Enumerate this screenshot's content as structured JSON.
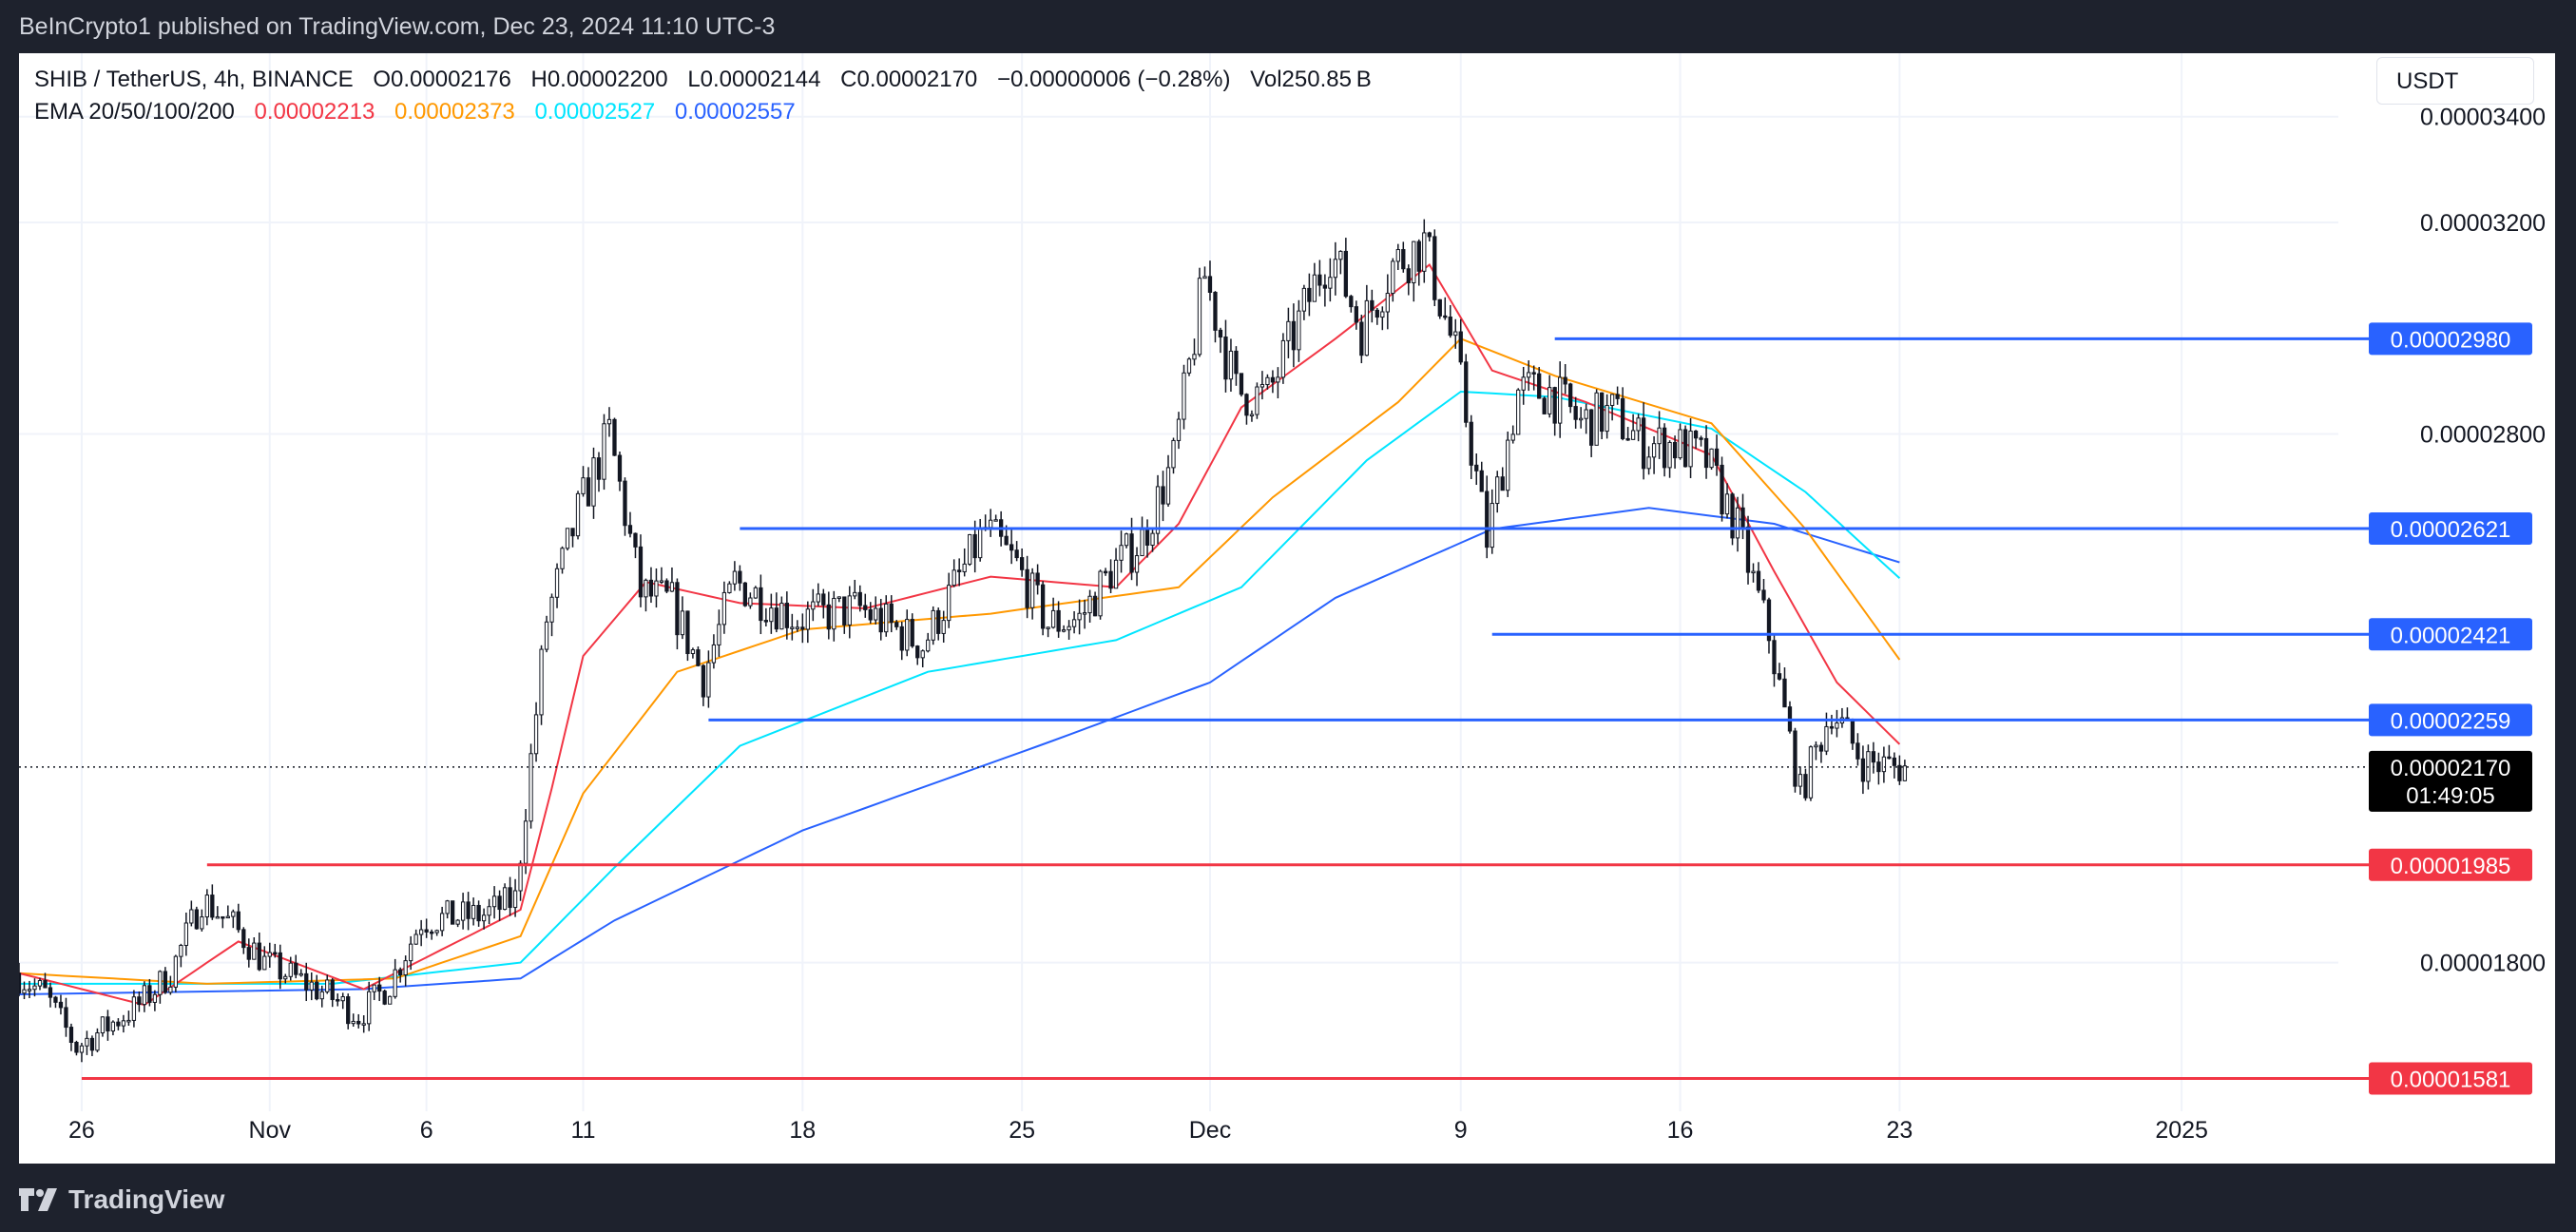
{
  "header": {
    "publisher_line": "BeInCrypto1 published on TradingView.com, Dec 23, 2024 11:10 UTC-3"
  },
  "legend": {
    "symbol": "SHIB / TetherUS, 4h, BINANCE",
    "open": "O0.00002176",
    "high": "H0.00002200",
    "low": "L0.00002144",
    "close": "C0.00002170",
    "change": "−0.00000006 (−0.28%)",
    "volume": "Vol250.85 B",
    "ema_label": "EMA 20/50/100/200",
    "ema20": "0.00002213",
    "ema50": "0.00002373",
    "ema100": "0.00002527",
    "ema200": "0.00002557"
  },
  "currency_button": "USDT",
  "footer": {
    "brand": "TradingView"
  },
  "colors": {
    "ema20": "#f23645",
    "ema50": "#ff9800",
    "ema100": "#00e5ff",
    "ema200": "#2962ff",
    "resistance": "#2962ff",
    "support": "#f23645"
  },
  "chart_data": {
    "type": "candlestick",
    "y_axis_ticks": [
      {
        "label": "0.00003400",
        "value": 3.4e-05
      },
      {
        "label": "0.00003200",
        "value": 3.2e-05
      },
      {
        "label": "0.00002800",
        "value": 2.8e-05
      },
      {
        "label": "0.00001800",
        "value": 1.8e-05
      }
    ],
    "x_axis_ticks": [
      {
        "label": "26",
        "date": "2024-10-26"
      },
      {
        "label": "Nov",
        "date": "2024-11-01"
      },
      {
        "label": "6",
        "date": "2024-11-06"
      },
      {
        "label": "11",
        "date": "2024-11-11"
      },
      {
        "label": "18",
        "date": "2024-11-18"
      },
      {
        "label": "25",
        "date": "2024-11-25"
      },
      {
        "label": "Dec",
        "date": "2024-12-01"
      },
      {
        "label": "9",
        "date": "2024-12-09"
      },
      {
        "label": "16",
        "date": "2024-12-16"
      },
      {
        "label": "23",
        "date": "2024-12-23"
      },
      {
        "label": "2025",
        "date": "2025-01-01"
      }
    ],
    "ylim": [
      1.42e-05,
      3.52e-05
    ],
    "xlim": [
      "2024-10-24",
      "2025-01-06"
    ],
    "last_price": {
      "label": "0.00002170",
      "value": 2.17e-05,
      "countdown": "01:49:05"
    },
    "levels": [
      {
        "label": "0.00002980",
        "value": 2.98e-05,
        "kind": "resistance",
        "from": "2024-12-12"
      },
      {
        "label": "0.00002621",
        "value": 2.621e-05,
        "kind": "resistance",
        "from": "2024-11-16"
      },
      {
        "label": "0.00002421",
        "value": 2.421e-05,
        "kind": "resistance",
        "from": "2024-12-10"
      },
      {
        "label": "0.00002259",
        "value": 2.259e-05,
        "kind": "resistance",
        "from": "2024-11-15"
      },
      {
        "label": "0.00001985",
        "value": 1.985e-05,
        "kind": "support",
        "from": "2024-10-30"
      },
      {
        "label": "0.00001581",
        "value": 1.581e-05,
        "kind": "support",
        "from": "2024-10-26"
      }
    ],
    "price_path": [
      {
        "date": "2024-10-24",
        "value": 1.78e-05
      },
      {
        "date": "2024-10-25",
        "value": 1.74e-05
      },
      {
        "date": "2024-10-26",
        "value": 1.64e-05
      },
      {
        "date": "2024-10-28",
        "value": 1.72e-05
      },
      {
        "date": "2024-10-29",
        "value": 1.78e-05
      },
      {
        "date": "2024-10-30",
        "value": 1.92e-05
      },
      {
        "date": "2024-10-31",
        "value": 1.87e-05
      },
      {
        "date": "2024-11-01",
        "value": 1.8e-05
      },
      {
        "date": "2024-11-03",
        "value": 1.74e-05
      },
      {
        "date": "2024-11-04",
        "value": 1.7e-05
      },
      {
        "date": "2024-11-05",
        "value": 1.76e-05
      },
      {
        "date": "2024-11-06",
        "value": 1.88e-05
      },
      {
        "date": "2024-11-08",
        "value": 1.89e-05
      },
      {
        "date": "2024-11-09",
        "value": 1.92e-05
      },
      {
        "date": "2024-11-10",
        "value": 2.45e-05
      },
      {
        "date": "2024-11-11",
        "value": 2.65e-05
      },
      {
        "date": "2024-11-12",
        "value": 2.8e-05
      },
      {
        "date": "2024-11-13",
        "value": 2.5e-05
      },
      {
        "date": "2024-11-14",
        "value": 2.48e-05
      },
      {
        "date": "2024-11-15",
        "value": 2.34e-05
      },
      {
        "date": "2024-11-16",
        "value": 2.52e-05
      },
      {
        "date": "2024-11-18",
        "value": 2.45e-05
      },
      {
        "date": "2024-11-20",
        "value": 2.47e-05
      },
      {
        "date": "2024-11-22",
        "value": 2.4e-05
      },
      {
        "date": "2024-11-24",
        "value": 2.62e-05
      },
      {
        "date": "2024-11-25",
        "value": 2.55e-05
      },
      {
        "date": "2024-11-26",
        "value": 2.44e-05
      },
      {
        "date": "2024-11-27",
        "value": 2.45e-05
      },
      {
        "date": "2024-11-28",
        "value": 2.54e-05
      },
      {
        "date": "2024-11-29",
        "value": 2.6e-05
      },
      {
        "date": "2024-11-30",
        "value": 2.75e-05
      },
      {
        "date": "2024-12-01",
        "value": 3.1e-05
      },
      {
        "date": "2024-12-02",
        "value": 2.88e-05
      },
      {
        "date": "2024-12-03",
        "value": 2.87e-05
      },
      {
        "date": "2024-12-05",
        "value": 3.15e-05
      },
      {
        "date": "2024-12-06",
        "value": 3e-05
      },
      {
        "date": "2024-12-07",
        "value": 3.12e-05
      },
      {
        "date": "2024-12-08",
        "value": 3.16e-05
      },
      {
        "date": "2024-12-09",
        "value": 2.95e-05
      },
      {
        "date": "2024-12-10",
        "value": 2.6e-05
      },
      {
        "date": "2024-12-11",
        "value": 2.88e-05
      },
      {
        "date": "2024-12-12",
        "value": 2.88e-05
      },
      {
        "date": "2024-12-13",
        "value": 2.82e-05
      },
      {
        "date": "2024-12-14",
        "value": 2.84e-05
      },
      {
        "date": "2024-12-15",
        "value": 2.78e-05
      },
      {
        "date": "2024-12-16",
        "value": 2.78e-05
      },
      {
        "date": "2024-12-17",
        "value": 2.75e-05
      },
      {
        "date": "2024-12-18",
        "value": 2.62e-05
      },
      {
        "date": "2024-12-19",
        "value": 2.42e-05
      },
      {
        "date": "2024-12-20",
        "value": 2.12e-05
      },
      {
        "date": "2024-12-21",
        "value": 2.28e-05
      },
      {
        "date": "2024-12-22",
        "value": 2.18e-05
      },
      {
        "date": "2024-12-23",
        "value": 2.17e-05
      }
    ],
    "ema20_path": [
      {
        "date": "2024-10-24",
        "value": 1.78e-05
      },
      {
        "date": "2024-10-28",
        "value": 1.72e-05
      },
      {
        "date": "2024-10-31",
        "value": 1.84e-05
      },
      {
        "date": "2024-11-04",
        "value": 1.75e-05
      },
      {
        "date": "2024-11-07",
        "value": 1.84e-05
      },
      {
        "date": "2024-11-09",
        "value": 1.9e-05
      },
      {
        "date": "2024-11-10",
        "value": 2.13e-05
      },
      {
        "date": "2024-11-11",
        "value": 2.38e-05
      },
      {
        "date": "2024-11-13",
        "value": 2.52e-05
      },
      {
        "date": "2024-11-16",
        "value": 2.48e-05
      },
      {
        "date": "2024-11-20",
        "value": 2.47e-05
      },
      {
        "date": "2024-11-24",
        "value": 2.53e-05
      },
      {
        "date": "2024-11-28",
        "value": 2.51e-05
      },
      {
        "date": "2024-11-30",
        "value": 2.63e-05
      },
      {
        "date": "2024-12-02",
        "value": 2.85e-05
      },
      {
        "date": "2024-12-05",
        "value": 2.98e-05
      },
      {
        "date": "2024-12-08",
        "value": 3.12e-05
      },
      {
        "date": "2024-12-10",
        "value": 2.92e-05
      },
      {
        "date": "2024-12-13",
        "value": 2.86e-05
      },
      {
        "date": "2024-12-17",
        "value": 2.76e-05
      },
      {
        "date": "2024-12-19",
        "value": 2.54e-05
      },
      {
        "date": "2024-12-21",
        "value": 2.33e-05
      },
      {
        "date": "2024-12-23",
        "value": 2.213e-05
      }
    ],
    "ema50_path": [
      {
        "date": "2024-10-24",
        "value": 1.78e-05
      },
      {
        "date": "2024-10-30",
        "value": 1.76e-05
      },
      {
        "date": "2024-11-05",
        "value": 1.77e-05
      },
      {
        "date": "2024-11-09",
        "value": 1.85e-05
      },
      {
        "date": "2024-11-11",
        "value": 2.12e-05
      },
      {
        "date": "2024-11-14",
        "value": 2.35e-05
      },
      {
        "date": "2024-11-18",
        "value": 2.43e-05
      },
      {
        "date": "2024-11-24",
        "value": 2.46e-05
      },
      {
        "date": "2024-11-30",
        "value": 2.51e-05
      },
      {
        "date": "2024-12-03",
        "value": 2.68e-05
      },
      {
        "date": "2024-12-07",
        "value": 2.86e-05
      },
      {
        "date": "2024-12-09",
        "value": 2.98e-05
      },
      {
        "date": "2024-12-12",
        "value": 2.91e-05
      },
      {
        "date": "2024-12-17",
        "value": 2.82e-05
      },
      {
        "date": "2024-12-20",
        "value": 2.62e-05
      },
      {
        "date": "2024-12-23",
        "value": 2.373e-05
      }
    ],
    "ema100_path": [
      {
        "date": "2024-10-24",
        "value": 1.76e-05
      },
      {
        "date": "2024-11-03",
        "value": 1.76e-05
      },
      {
        "date": "2024-11-09",
        "value": 1.8e-05
      },
      {
        "date": "2024-11-12",
        "value": 1.98e-05
      },
      {
        "date": "2024-11-16",
        "value": 2.21e-05
      },
      {
        "date": "2024-11-22",
        "value": 2.35e-05
      },
      {
        "date": "2024-11-28",
        "value": 2.41e-05
      },
      {
        "date": "2024-12-02",
        "value": 2.51e-05
      },
      {
        "date": "2024-12-06",
        "value": 2.75e-05
      },
      {
        "date": "2024-12-09",
        "value": 2.88e-05
      },
      {
        "date": "2024-12-12",
        "value": 2.87e-05
      },
      {
        "date": "2024-12-17",
        "value": 2.81e-05
      },
      {
        "date": "2024-12-20",
        "value": 2.69e-05
      },
      {
        "date": "2024-12-23",
        "value": 2.527e-05
      }
    ],
    "ema200_path": [
      {
        "date": "2024-10-24",
        "value": 1.74e-05
      },
      {
        "date": "2024-11-04",
        "value": 1.75e-05
      },
      {
        "date": "2024-11-09",
        "value": 1.77e-05
      },
      {
        "date": "2024-11-12",
        "value": 1.88e-05
      },
      {
        "date": "2024-11-18",
        "value": 2.05e-05
      },
      {
        "date": "2024-11-26",
        "value": 2.22e-05
      },
      {
        "date": "2024-12-01",
        "value": 2.33e-05
      },
      {
        "date": "2024-12-05",
        "value": 2.49e-05
      },
      {
        "date": "2024-12-10",
        "value": 2.62e-05
      },
      {
        "date": "2024-12-15",
        "value": 2.66e-05
      },
      {
        "date": "2024-12-19",
        "value": 2.63e-05
      },
      {
        "date": "2024-12-23",
        "value": 2.557e-05
      }
    ]
  }
}
